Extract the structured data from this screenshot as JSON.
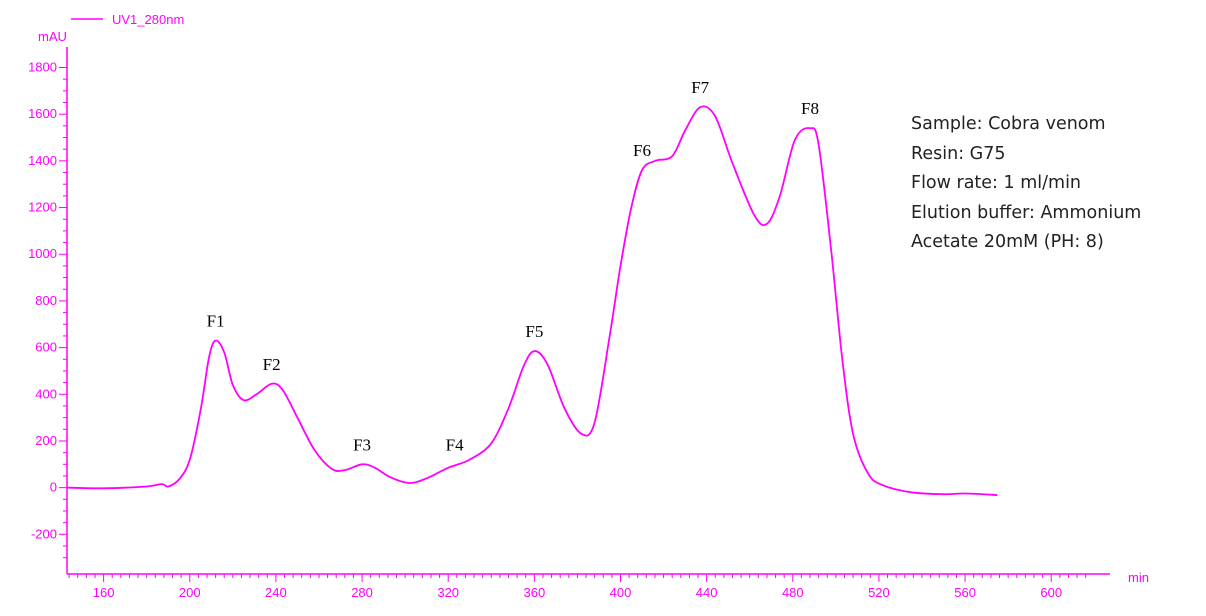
{
  "chart_data": {
    "type": "line",
    "title": "",
    "xlabel": "min",
    "ylabel": "mAU",
    "xlim": [
      143,
      618
    ],
    "ylim": [
      -370,
      1845
    ],
    "x_ticks": [
      160,
      200,
      240,
      280,
      320,
      360,
      400,
      440,
      480,
      520,
      560,
      600
    ],
    "y_ticks": [
      -200,
      0,
      200,
      400,
      600,
      800,
      1000,
      1200,
      1400,
      1600,
      1800
    ],
    "grid": false,
    "legend": {
      "placement": "top-left",
      "entries": [
        "UV1_280nm"
      ]
    },
    "series": [
      {
        "name": "UV1_280nm",
        "color": "#ff00ff",
        "points": [
          [
            143,
            0
          ],
          [
            160,
            -3
          ],
          [
            180,
            5
          ],
          [
            187,
            15
          ],
          [
            190,
            5
          ],
          [
            195,
            35
          ],
          [
            200,
            120
          ],
          [
            205,
            330
          ],
          [
            209,
            560
          ],
          [
            212,
            630
          ],
          [
            216,
            580
          ],
          [
            220,
            440
          ],
          [
            225,
            375
          ],
          [
            231,
            400
          ],
          [
            238,
            445
          ],
          [
            243,
            420
          ],
          [
            250,
            300
          ],
          [
            258,
            160
          ],
          [
            266,
            80
          ],
          [
            272,
            75
          ],
          [
            280,
            100
          ],
          [
            286,
            85
          ],
          [
            293,
            45
          ],
          [
            302,
            20
          ],
          [
            310,
            40
          ],
          [
            320,
            85
          ],
          [
            330,
            120
          ],
          [
            340,
            190
          ],
          [
            348,
            340
          ],
          [
            355,
            520
          ],
          [
            360,
            585
          ],
          [
            366,
            530
          ],
          [
            374,
            340
          ],
          [
            382,
            230
          ],
          [
            388,
            280
          ],
          [
            395,
            650
          ],
          [
            400,
            950
          ],
          [
            405,
            1200
          ],
          [
            410,
            1360
          ],
          [
            416,
            1400
          ],
          [
            424,
            1420
          ],
          [
            430,
            1530
          ],
          [
            437,
            1630
          ],
          [
            444,
            1590
          ],
          [
            452,
            1390
          ],
          [
            462,
            1170
          ],
          [
            468,
            1130
          ],
          [
            474,
            1250
          ],
          [
            481,
            1490
          ],
          [
            488,
            1540
          ],
          [
            492,
            1470
          ],
          [
            498,
            1000
          ],
          [
            503,
            550
          ],
          [
            508,
            230
          ],
          [
            515,
            60
          ],
          [
            522,
            10
          ],
          [
            535,
            -20
          ],
          [
            550,
            -28
          ],
          [
            560,
            -25
          ],
          [
            575,
            -32
          ]
        ]
      }
    ],
    "annotations": [
      {
        "text": "F1",
        "x": 212,
        "y": 630
      },
      {
        "text": "F2",
        "x": 238,
        "y": 445
      },
      {
        "text": "F3",
        "x": 280,
        "y": 100
      },
      {
        "text": "F4",
        "x": 323,
        "y": 100
      },
      {
        "text": "F5",
        "x": 360,
        "y": 585
      },
      {
        "text": "F6",
        "x": 410,
        "y": 1360
      },
      {
        "text": "F7",
        "x": 437,
        "y": 1630
      },
      {
        "text": "F8",
        "x": 488,
        "y": 1540
      }
    ]
  },
  "info_box": [
    "Sample: Cobra venom",
    "Resin: G75",
    "Flow rate: 1 ml/min",
    "Elution buffer:  Ammonium",
    "Acetate 20mM (PH: 8)"
  ]
}
